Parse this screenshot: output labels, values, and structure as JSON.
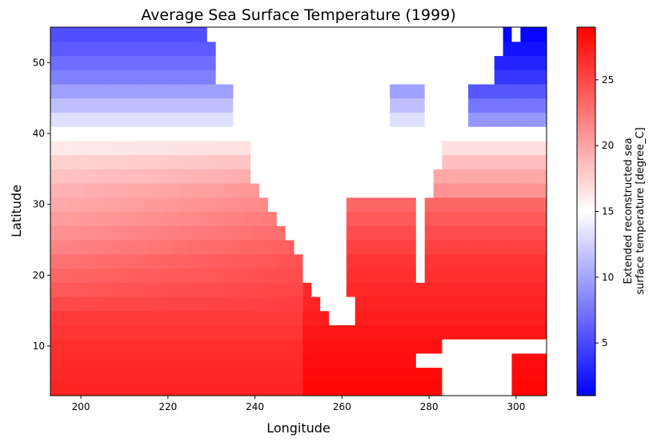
{
  "chart_data": {
    "type": "heatmap",
    "title": "Average Sea Surface Temperature (1999)",
    "xlabel": "Longitude",
    "ylabel": "Latitude",
    "xlim": [
      193,
      307
    ],
    "ylim": [
      3,
      55
    ],
    "x_ticks": [
      200,
      220,
      240,
      260,
      280,
      300
    ],
    "y_ticks": [
      10,
      20,
      30,
      40,
      50
    ],
    "colorbar": {
      "label_line1": "Extended reconstructed sea",
      "label_line2": "surface temperature [degree_C]",
      "range": [
        1,
        29
      ],
      "ticks": [
        5,
        10,
        15,
        20,
        25
      ],
      "colormap": "bwr"
    },
    "colors": {
      "cold": "#0000ff",
      "mid": "#ffffff",
      "warm": "#ff0000",
      "land": "#ffffff"
    },
    "grid": false,
    "grid_resolution_deg": 2,
    "model": {
      "description_keys": [
        "base_by_latitude",
        "land_regions"
      ],
      "lat_temperature_profile": [
        [
          4,
          27
        ],
        [
          10,
          26.5
        ],
        [
          16,
          25.5
        ],
        [
          22,
          24.5
        ],
        [
          28,
          22.5
        ],
        [
          32,
          21
        ],
        [
          36,
          18.5
        ],
        [
          40,
          15
        ],
        [
          44,
          11.5
        ],
        [
          48,
          8
        ],
        [
          52,
          6
        ],
        [
          55,
          5
        ]
      ],
      "east_warm_lon": 255
    }
  }
}
